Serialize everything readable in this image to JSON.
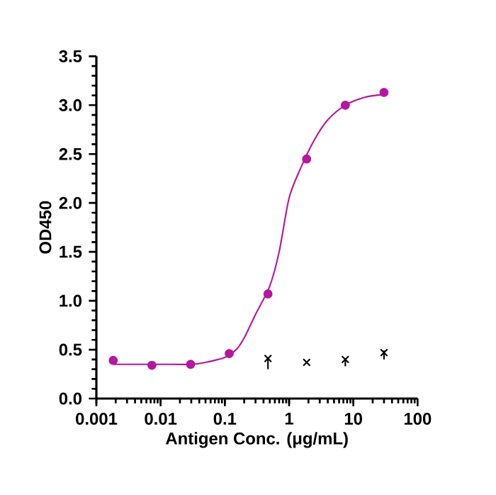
{
  "chart_data": {
    "type": "scatter",
    "xlabel": "Antigen Conc. (μg/mL)",
    "ylabel": "OD450",
    "log": "x",
    "grid": false,
    "xlim": [
      0.001,
      100
    ],
    "xticks": [
      0.001,
      0.01,
      0.1,
      1,
      10,
      100
    ],
    "ylim": [
      0,
      3.5
    ],
    "yticks": [
      {
        "value": 0,
        "label": "0.0"
      },
      {
        "value": 0.5,
        "label": "0.5"
      },
      {
        "value": 1,
        "label": "1.0"
      },
      {
        "value": 1.5,
        "label": "1.5"
      },
      {
        "value": 2,
        "label": "2.0"
      },
      {
        "value": 2.5,
        "label": "2.5"
      },
      {
        "value": 3,
        "label": "3.0"
      },
      {
        "value": 3.5,
        "label": "3.5"
      }
    ],
    "series": [
      {
        "marker": "circle",
        "color": "#b5179e",
        "x": [
          0.00183,
          0.00732,
          0.0293,
          0.117,
          0.469,
          1.875,
          7.5,
          30
        ],
        "values": [
          0.39,
          0.34,
          0.35,
          0.46,
          1.07,
          2.45,
          3.0,
          3.13
        ]
      },
      {
        "type": "line",
        "marker": "none",
        "color": "#b5179e",
        "x": [
          0.00183,
          0.005,
          0.01,
          0.03,
          0.05,
          0.1,
          0.15,
          0.2,
          0.3,
          0.5,
          0.7,
          1.0,
          1.5,
          2.5,
          4,
          7.5,
          15,
          30
        ],
        "values": [
          0.35,
          0.35,
          0.35,
          0.35,
          0.37,
          0.42,
          0.5,
          0.62,
          0.86,
          1.15,
          1.5,
          2.05,
          2.35,
          2.65,
          2.85,
          3.0,
          3.08,
          3.11
        ]
      },
      {
        "type": "scatter",
        "marker": "cross",
        "color": "#000000",
        "x": [
          0.469,
          1.875,
          7.5,
          30
        ],
        "values": [
          0.41,
          0.37,
          0.4,
          0.47
        ],
        "errors": [
          [
            0.3,
            0.41
          ],
          null,
          [
            0.33,
            0.4
          ],
          [
            0.4,
            0.49
          ]
        ]
      }
    ]
  }
}
